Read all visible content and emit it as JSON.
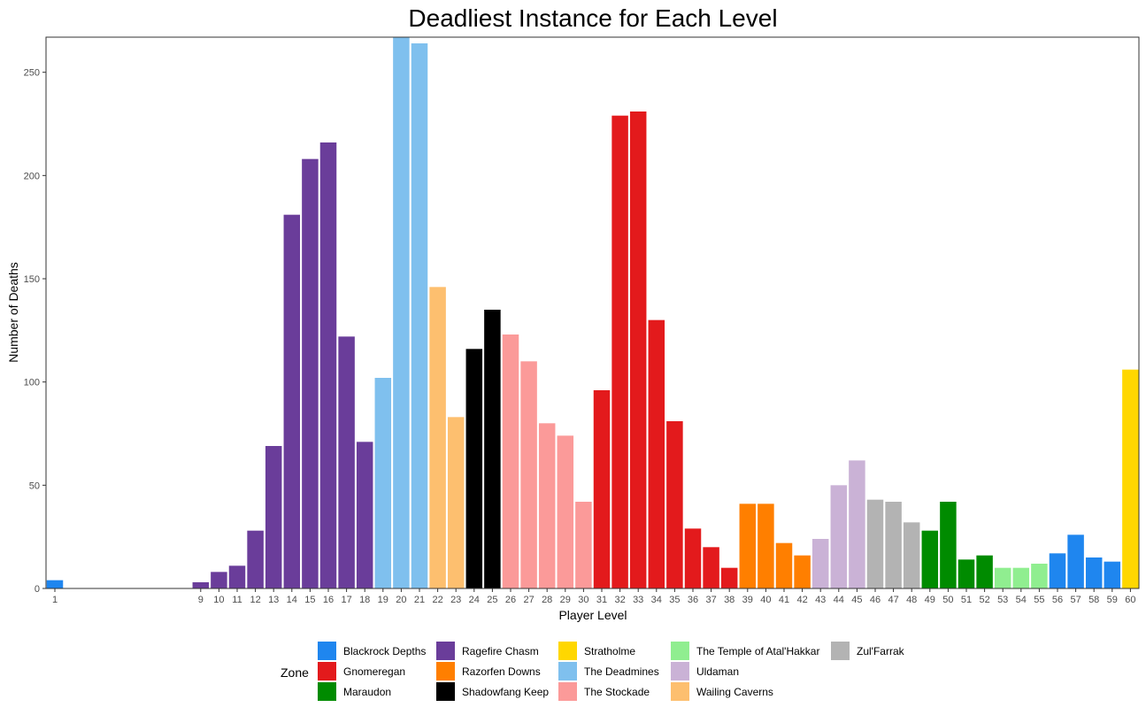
{
  "chart_data": {
    "type": "bar",
    "title": "Deadliest Instance for Each Level",
    "xlabel": "Player Level",
    "ylabel": "Number of Deaths",
    "ylim": [
      0,
      267
    ],
    "yticks": [
      0,
      50,
      100,
      150,
      200,
      250
    ],
    "grid": false,
    "legend_title": "Zone",
    "legend_position": "bottom",
    "zones": [
      {
        "name": "Blackrock Depths",
        "color": "#1f86ef"
      },
      {
        "name": "Gnomeregan",
        "color": "#e31a1c"
      },
      {
        "name": "Maraudon",
        "color": "#008b00"
      },
      {
        "name": "Ragefire Chasm",
        "color": "#6a3d9a"
      },
      {
        "name": "Razorfen Downs",
        "color": "#ff7f00"
      },
      {
        "name": "Shadowfang Keep",
        "color": "#000000"
      },
      {
        "name": "Stratholme",
        "color": "#ffd700"
      },
      {
        "name": "The Deadmines",
        "color": "#7fc0ee"
      },
      {
        "name": "The Stockade",
        "color": "#fb9a99"
      },
      {
        "name": "The Temple of Atal'Hakkar",
        "color": "#90ee90"
      },
      {
        "name": "Uldaman",
        "color": "#cab2d6"
      },
      {
        "name": "Wailing Caverns",
        "color": "#fdbf6f"
      },
      {
        "name": "Zul'Farrak",
        "color": "#b3b3b3"
      }
    ],
    "bars": [
      {
        "level": 1,
        "value": 4,
        "zone": "Blackrock Depths"
      },
      {
        "level": 9,
        "value": 3,
        "zone": "Ragefire Chasm"
      },
      {
        "level": 10,
        "value": 8,
        "zone": "Ragefire Chasm"
      },
      {
        "level": 11,
        "value": 11,
        "zone": "Ragefire Chasm"
      },
      {
        "level": 12,
        "value": 28,
        "zone": "Ragefire Chasm"
      },
      {
        "level": 13,
        "value": 69,
        "zone": "Ragefire Chasm"
      },
      {
        "level": 14,
        "value": 181,
        "zone": "Ragefire Chasm"
      },
      {
        "level": 15,
        "value": 208,
        "zone": "Ragefire Chasm"
      },
      {
        "level": 16,
        "value": 216,
        "zone": "Ragefire Chasm"
      },
      {
        "level": 17,
        "value": 122,
        "zone": "Ragefire Chasm"
      },
      {
        "level": 18,
        "value": 71,
        "zone": "Ragefire Chasm"
      },
      {
        "level": 19,
        "value": 102,
        "zone": "The Deadmines"
      },
      {
        "level": 20,
        "value": 267,
        "zone": "The Deadmines"
      },
      {
        "level": 21,
        "value": 264,
        "zone": "The Deadmines"
      },
      {
        "level": 22,
        "value": 146,
        "zone": "Wailing Caverns"
      },
      {
        "level": 23,
        "value": 83,
        "zone": "Wailing Caverns"
      },
      {
        "level": 24,
        "value": 116,
        "zone": "Shadowfang Keep"
      },
      {
        "level": 25,
        "value": 135,
        "zone": "Shadowfang Keep"
      },
      {
        "level": 26,
        "value": 123,
        "zone": "The Stockade"
      },
      {
        "level": 27,
        "value": 110,
        "zone": "The Stockade"
      },
      {
        "level": 28,
        "value": 80,
        "zone": "The Stockade"
      },
      {
        "level": 29,
        "value": 74,
        "zone": "The Stockade"
      },
      {
        "level": 30,
        "value": 42,
        "zone": "The Stockade"
      },
      {
        "level": 31,
        "value": 96,
        "zone": "Gnomeregan"
      },
      {
        "level": 32,
        "value": 229,
        "zone": "Gnomeregan"
      },
      {
        "level": 33,
        "value": 231,
        "zone": "Gnomeregan"
      },
      {
        "level": 34,
        "value": 130,
        "zone": "Gnomeregan"
      },
      {
        "level": 35,
        "value": 81,
        "zone": "Gnomeregan"
      },
      {
        "level": 36,
        "value": 29,
        "zone": "Gnomeregan"
      },
      {
        "level": 37,
        "value": 20,
        "zone": "Gnomeregan"
      },
      {
        "level": 38,
        "value": 10,
        "zone": "Gnomeregan"
      },
      {
        "level": 39,
        "value": 41,
        "zone": "Razorfen Downs"
      },
      {
        "level": 40,
        "value": 41,
        "zone": "Razorfen Downs"
      },
      {
        "level": 41,
        "value": 22,
        "zone": "Razorfen Downs"
      },
      {
        "level": 42,
        "value": 16,
        "zone": "Razorfen Downs"
      },
      {
        "level": 43,
        "value": 24,
        "zone": "Uldaman"
      },
      {
        "level": 44,
        "value": 50,
        "zone": "Uldaman"
      },
      {
        "level": 45,
        "value": 62,
        "zone": "Uldaman"
      },
      {
        "level": 46,
        "value": 43,
        "zone": "Zul'Farrak"
      },
      {
        "level": 47,
        "value": 42,
        "zone": "Zul'Farrak"
      },
      {
        "level": 48,
        "value": 32,
        "zone": "Zul'Farrak"
      },
      {
        "level": 49,
        "value": 28,
        "zone": "Maraudon"
      },
      {
        "level": 50,
        "value": 42,
        "zone": "Maraudon"
      },
      {
        "level": 51,
        "value": 14,
        "zone": "Maraudon"
      },
      {
        "level": 52,
        "value": 16,
        "zone": "Maraudon"
      },
      {
        "level": 53,
        "value": 10,
        "zone": "The Temple of Atal'Hakkar"
      },
      {
        "level": 54,
        "value": 10,
        "zone": "The Temple of Atal'Hakkar"
      },
      {
        "level": 55,
        "value": 12,
        "zone": "The Temple of Atal'Hakkar"
      },
      {
        "level": 56,
        "value": 17,
        "zone": "Blackrock Depths"
      },
      {
        "level": 57,
        "value": 26,
        "zone": "Blackrock Depths"
      },
      {
        "level": 58,
        "value": 15,
        "zone": "Blackrock Depths"
      },
      {
        "level": 59,
        "value": 13,
        "zone": "Blackrock Depths"
      },
      {
        "level": 60,
        "value": 106,
        "zone": "Stratholme"
      }
    ]
  }
}
